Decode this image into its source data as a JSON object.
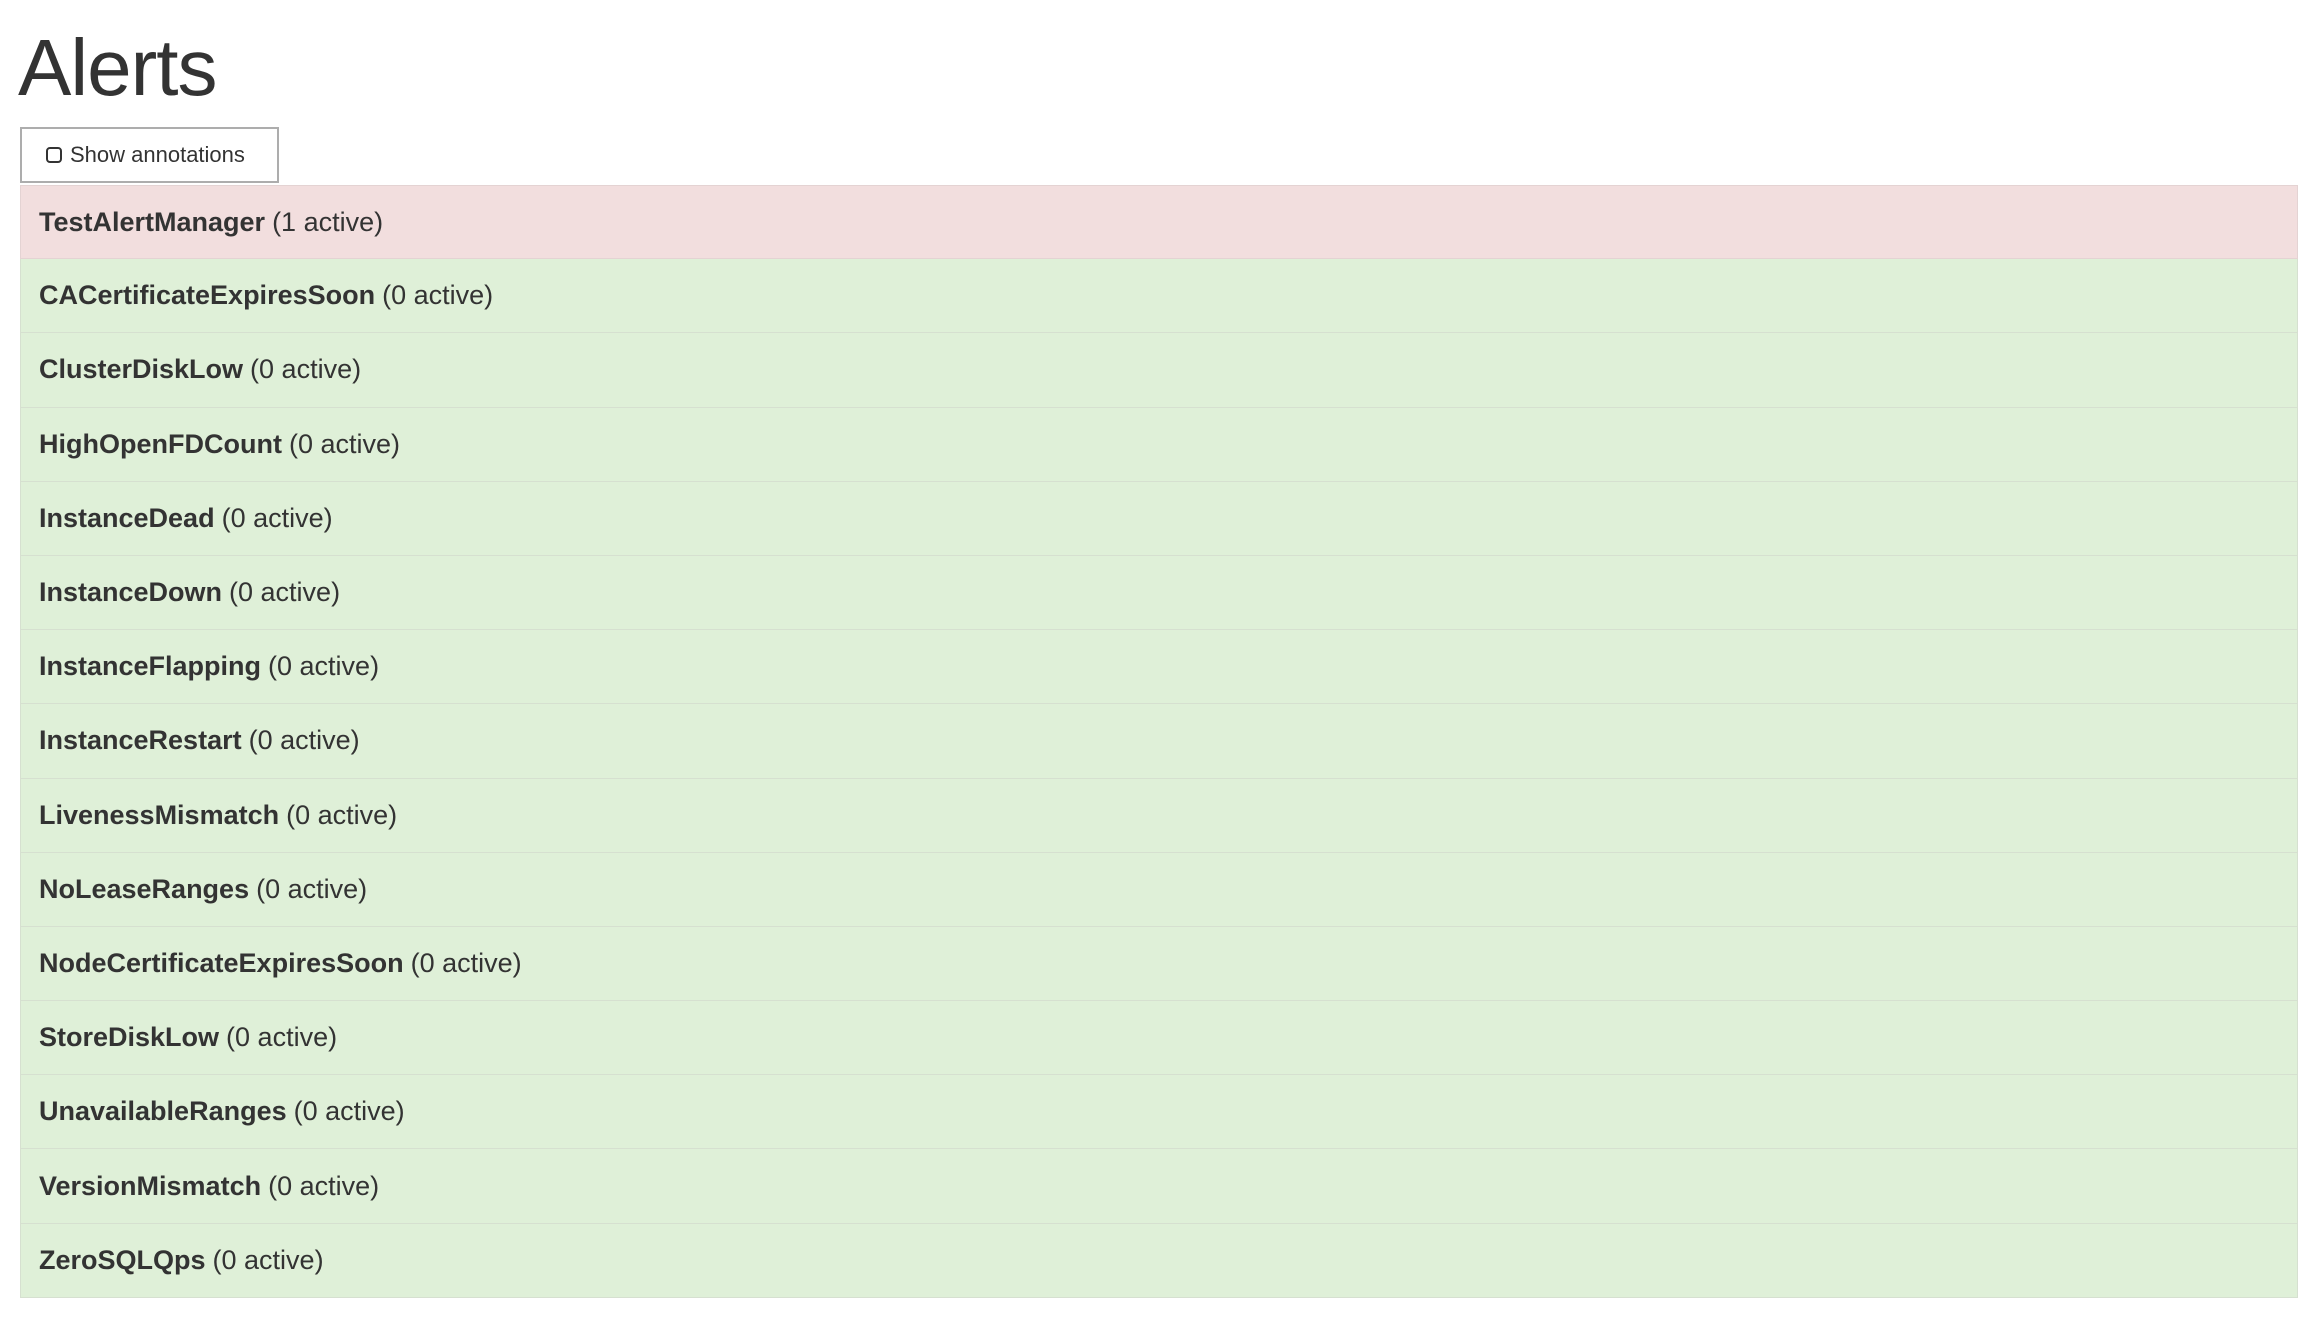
{
  "page": {
    "title": "Alerts"
  },
  "toolbar": {
    "show_annotations_label": "Show annotations",
    "show_annotations_checked": false
  },
  "colors": {
    "firing": "#f2dede",
    "inactive": "#dff0d8",
    "text": "#333333"
  },
  "alerts": [
    {
      "name": "TestAlertManager",
      "count": "(1 active)",
      "state": "firing"
    },
    {
      "name": "CACertificateExpiresSoon",
      "count": "(0 active)",
      "state": "inactive"
    },
    {
      "name": "ClusterDiskLow",
      "count": "(0 active)",
      "state": "inactive"
    },
    {
      "name": "HighOpenFDCount",
      "count": "(0 active)",
      "state": "inactive"
    },
    {
      "name": "InstanceDead",
      "count": "(0 active)",
      "state": "inactive"
    },
    {
      "name": "InstanceDown",
      "count": "(0 active)",
      "state": "inactive"
    },
    {
      "name": "InstanceFlapping",
      "count": "(0 active)",
      "state": "inactive"
    },
    {
      "name": "InstanceRestart",
      "count": "(0 active)",
      "state": "inactive"
    },
    {
      "name": "LivenessMismatch",
      "count": "(0 active)",
      "state": "inactive"
    },
    {
      "name": "NoLeaseRanges",
      "count": "(0 active)",
      "state": "inactive"
    },
    {
      "name": "NodeCertificateExpiresSoon",
      "count": "(0 active)",
      "state": "inactive"
    },
    {
      "name": "StoreDiskLow",
      "count": "(0 active)",
      "state": "inactive"
    },
    {
      "name": "UnavailableRanges",
      "count": "(0 active)",
      "state": "inactive"
    },
    {
      "name": "VersionMismatch",
      "count": "(0 active)",
      "state": "inactive"
    },
    {
      "name": "ZeroSQLQps",
      "count": "(0 active)",
      "state": "inactive"
    }
  ]
}
